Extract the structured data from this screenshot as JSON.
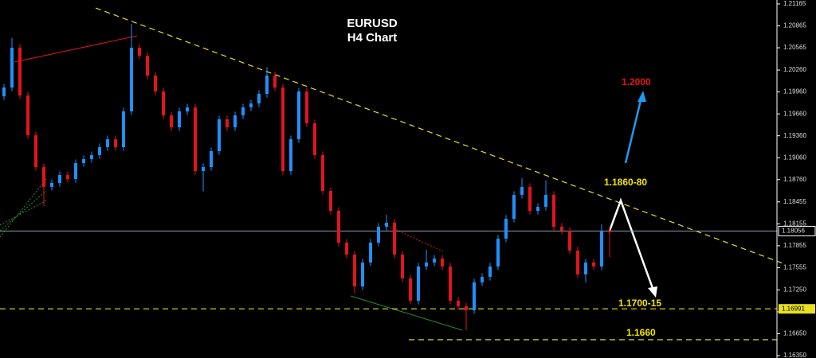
{
  "chart_data": {
    "type": "candlestick",
    "title": "EURUSD",
    "subtitle": "H4 Chart",
    "annotations": [
      "1.2000",
      "1.1860-80",
      "1.1700-15",
      "1.1660"
    ],
    "up_color": "#1e90ff",
    "down_color": "#e3141b",
    "current_price": 1.18056,
    "support_price": 1.16991,
    "ylim": [
      1.16318,
      1.21219
    ],
    "yticks": [
      1.21165,
      1.20865,
      1.20565,
      {
        "value": 1.2026,
        "label": "1.20260"
      },
      {
        "value": 1.1996,
        "label": "1.19960"
      },
      {
        "value": 1.1966,
        "label": "1.19660"
      },
      {
        "value": 1.1936,
        "label": "1.19360"
      },
      {
        "value": 1.1906,
        "label": "1.19060"
      },
      {
        "value": 1.1876,
        "label": "1.18760"
      },
      1.18455,
      1.18155,
      1.17855,
      1.17555,
      {
        "value": 1.1725,
        "label": "1.17250"
      },
      {
        "value": 1.1695,
        "label": "1.16950"
      },
      {
        "value": 1.1665,
        "label": "1.16650"
      },
      {
        "value": 1.1635,
        "label": "1.16350"
      }
    ],
    "open": [
      1.199,
      1.20021,
      1.20566,
      1.19912,
      1.19368,
      1.18932,
      1.1866,
      1.18714,
      1.18823,
      1.18768,
      1.18986,
      1.19041,
      1.19095,
      1.19204,
      1.19313,
      1.19204,
      1.19694,
      1.20566,
      1.20457,
      1.20184,
      1.19967,
      1.1964,
      1.19476,
      1.19694,
      1.19749,
      1.18877,
      1.18932,
      1.1915,
      1.19585,
      1.19476,
      1.1964,
      1.19749,
      1.19803,
      1.19934,
      1.20184,
      1.20021,
      1.18877,
      1.19313,
      1.19967,
      1.19531,
      1.19095,
      1.18605,
      1.18333,
      1.17897,
      1.17734,
      1.17298,
      1.17625,
      1.17897,
      1.18115,
      1.1817,
      1.17734,
      1.17407,
      1.17102,
      1.17571,
      1.17625,
      1.17679,
      1.17571,
      1.17102,
      1.17026,
      1.16971,
      1.17353,
      1.17429,
      1.17571,
      1.17952,
      1.18224,
      1.18551,
      1.1866,
      1.18333,
      1.18387,
      1.18551,
      1.18115,
      1.18061,
      1.17788,
      1.17462,
      1.17625,
      1.17571,
      1.18061
    ],
    "high": [
      1.20071,
      1.207,
      1.20616,
      1.19962,
      1.19418,
      1.18982,
      1.18764,
      1.18873,
      1.18873,
      1.19036,
      1.19091,
      1.19145,
      1.19254,
      1.19363,
      1.19363,
      1.19744,
      1.20892,
      1.20616,
      1.20507,
      1.20234,
      1.20017,
      1.1969,
      1.19744,
      1.19799,
      1.19799,
      1.18982,
      1.192,
      1.19635,
      1.19635,
      1.1969,
      1.19799,
      1.19853,
      1.19984,
      1.203,
      1.20234,
      1.20071,
      1.19363,
      1.20017,
      1.20017,
      1.19581,
      1.19145,
      1.18655,
      1.18383,
      1.17947,
      1.17784,
      1.17675,
      1.17947,
      1.18165,
      1.1828,
      1.1822,
      1.17784,
      1.17457,
      1.17621,
      1.178,
      1.17729,
      1.17729,
      1.17621,
      1.17152,
      1.17076,
      1.17403,
      1.17479,
      1.17621,
      1.18002,
      1.18274,
      1.18601,
      1.1878,
      1.1871,
      1.18437,
      1.1875,
      1.18601,
      1.18165,
      1.18111,
      1.17838,
      1.17675,
      1.17675,
      1.1815,
      1.18111
    ],
    "low": [
      1.1985,
      1.19971,
      1.19862,
      1.19318,
      1.18882,
      1.184,
      1.1861,
      1.18664,
      1.18718,
      1.18718,
      1.18936,
      1.18991,
      1.19045,
      1.19154,
      1.19154,
      1.19154,
      1.19644,
      1.20407,
      1.20134,
      1.19917,
      1.1959,
      1.19426,
      1.19426,
      1.19644,
      1.18827,
      1.186,
      1.18882,
      1.191,
      1.19426,
      1.19426,
      1.1959,
      1.19699,
      1.19753,
      1.19884,
      1.19971,
      1.18827,
      1.18827,
      1.19263,
      1.19481,
      1.19045,
      1.18555,
      1.18283,
      1.17847,
      1.17684,
      1.172,
      1.17248,
      1.17575,
      1.17847,
      1.18065,
      1.17684,
      1.17357,
      1.17052,
      1.17052,
      1.17521,
      1.17575,
      1.17521,
      1.17052,
      1.16976,
      1.16699,
      1.16921,
      1.17303,
      1.17379,
      1.17521,
      1.17902,
      1.18174,
      1.18501,
      1.18283,
      1.18283,
      1.18337,
      1.18065,
      1.18011,
      1.17738,
      1.17412,
      1.1735,
      1.17521,
      1.17521,
      1.177
    ],
    "close": [
      1.20021,
      1.20566,
      1.19912,
      1.19368,
      1.18932,
      1.1866,
      1.18714,
      1.18823,
      1.18768,
      1.18986,
      1.19041,
      1.19095,
      1.19204,
      1.19313,
      1.19204,
      1.19694,
      1.20566,
      1.20457,
      1.20184,
      1.19967,
      1.1964,
      1.19476,
      1.19694,
      1.19749,
      1.18877,
      1.18932,
      1.1915,
      1.19585,
      1.19476,
      1.1964,
      1.19749,
      1.19803,
      1.19934,
      1.20184,
      1.20021,
      1.18877,
      1.19313,
      1.19967,
      1.19531,
      1.19095,
      1.18605,
      1.18333,
      1.17897,
      1.17734,
      1.17298,
      1.17625,
      1.17897,
      1.18115,
      1.1817,
      1.17734,
      1.17407,
      1.17102,
      1.17571,
      1.17625,
      1.17679,
      1.17571,
      1.17102,
      1.17026,
      1.16971,
      1.17353,
      1.17429,
      1.17571,
      1.17952,
      1.18224,
      1.18551,
      1.1866,
      1.18333,
      1.18387,
      1.18551,
      1.18115,
      1.18061,
      1.17788,
      1.17462,
      1.17625,
      1.17571,
      1.18061,
      1.18039
    ]
  }
}
